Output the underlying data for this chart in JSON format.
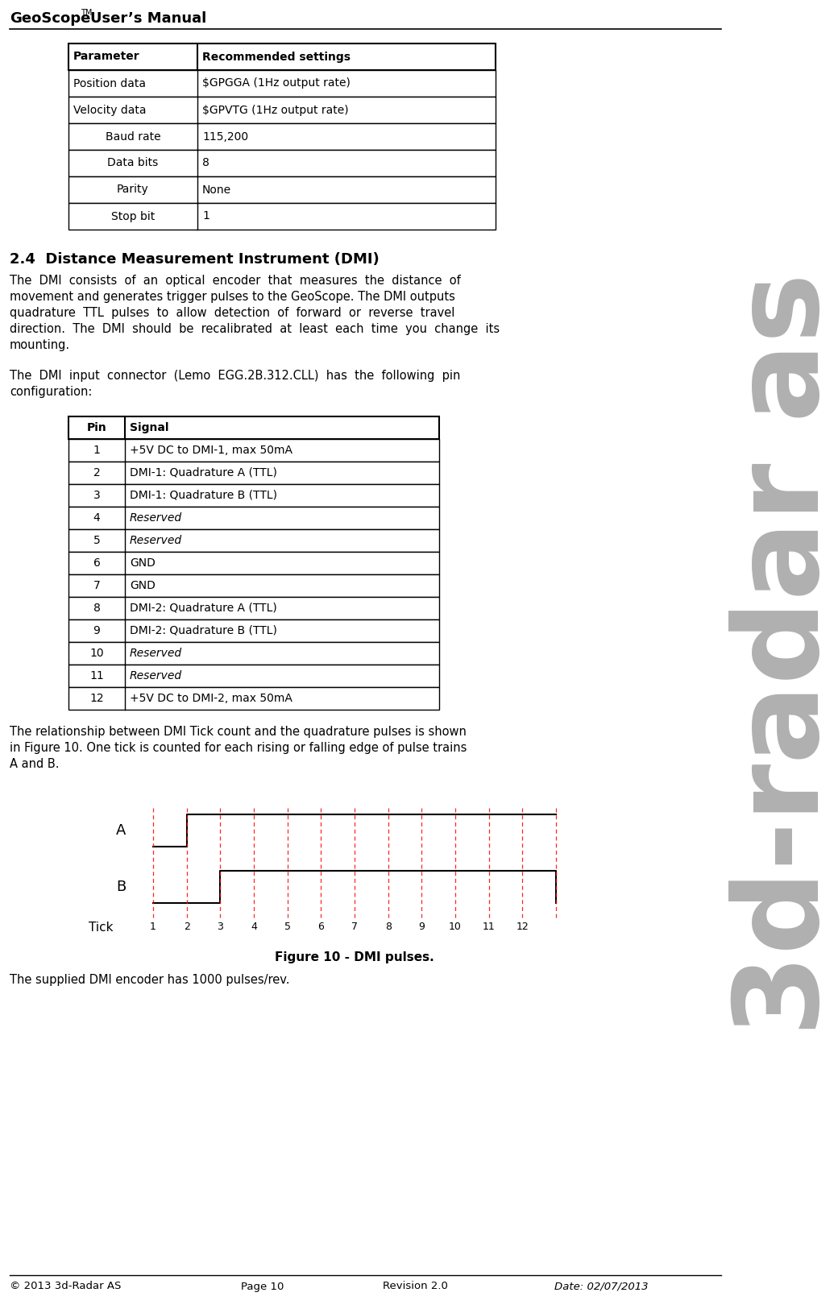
{
  "header_geoscope": "GeoScope",
  "header_tm": "TM",
  "header_manual": "User’s Manual",
  "sidebar_text": "3d-radar as",
  "section_title": "2.4  Distance Measurement Instrument (DMI)",
  "p1_lines": [
    "The  DMI  consists  of  an  optical  encoder  that  measures  the  distance  of",
    "movement and generates trigger pulses to the GeoScope. The DMI outputs",
    "quadrature  TTL  pulses  to  allow  detection  of  forward  or  reverse  travel",
    "direction.  The  DMI  should  be  recalibrated  at  least  each  time  you  change  its",
    "mounting."
  ],
  "p2_lines": [
    "The  DMI  input  connector  (Lemo  EGG.2B.312.CLL)  has  the  following  pin",
    "configuration:"
  ],
  "p3_lines": [
    "The relationship between DMI Tick count and the quadrature pulses is shown",
    "in Figure 10. One tick is counted for each rising or falling edge of pulse trains",
    "A and B."
  ],
  "fig_caption": "Figure 10 - DMI pulses.",
  "para4": "The supplied DMI encoder has 1000 pulses/rev.",
  "footer_left": "© 2013 3d-Radar AS",
  "footer_center1": "Page 10",
  "footer_center2": "Revision 2.0",
  "footer_right": "Date: 02/07/2013",
  "table1_headers": [
    "Parameter",
    "Recommended settings"
  ],
  "table1_rows": [
    [
      "Position data",
      "$GPGGA (1Hz output rate)"
    ],
    [
      "Velocity data",
      "$GPVTG (1Hz output rate)"
    ],
    [
      "Baud rate",
      "115,200"
    ],
    [
      "Data bits",
      "8"
    ],
    [
      "Parity",
      "None"
    ],
    [
      "Stop bit",
      "1"
    ]
  ],
  "table1_col1_centered": [
    false,
    false,
    true,
    true,
    true,
    true
  ],
  "table2_headers": [
    "Pin",
    "Signal"
  ],
  "table2_rows": [
    [
      "1",
      "+5V DC to DMI-1, max 50mA",
      false
    ],
    [
      "2",
      "DMI-1: Quadrature A (TTL)",
      false
    ],
    [
      "3",
      "DMI-1: Quadrature B (TTL)",
      false
    ],
    [
      "4",
      "Reserved",
      true
    ],
    [
      "5",
      "Reserved",
      true
    ],
    [
      "6",
      "GND",
      false
    ],
    [
      "7",
      "GND",
      false
    ],
    [
      "8",
      "DMI-2: Quadrature A (TTL)",
      false
    ],
    [
      "9",
      "DMI-2: Quadrature B (TTL)",
      false
    ],
    [
      "10",
      "Reserved",
      true
    ],
    [
      "11",
      "Reserved",
      true
    ],
    [
      "12",
      "+5V DC to DMI-2, max 50mA",
      false
    ]
  ],
  "bg_color": "#ffffff",
  "text_color": "#000000",
  "sidebar_text_color": "#aaaaaa"
}
